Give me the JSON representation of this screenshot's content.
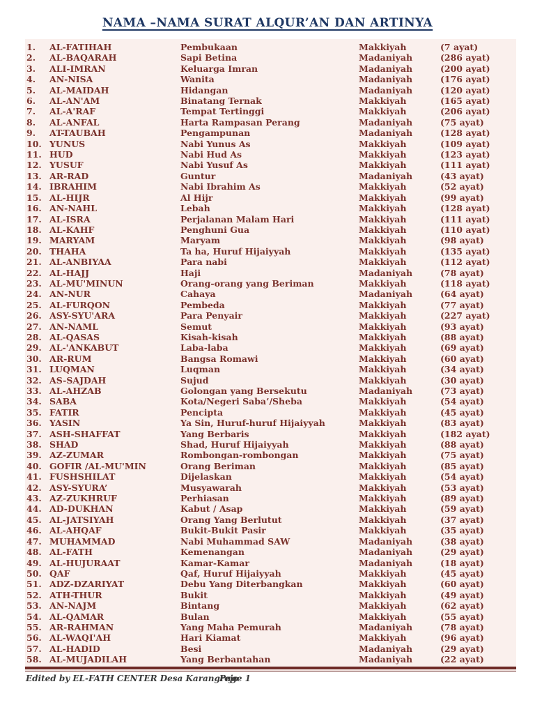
{
  "page": {
    "title": "NAMA –NAMA SURAT ALQUR’AN DAN ARTINYA",
    "footer": {
      "edited_by": "Edited by EL-FATH CENTER Desa Karangrejo",
      "page_label": "Page 1"
    },
    "colors": {
      "title_navy": "#1F3864",
      "body_maroon": "#7A322C",
      "table_background_pink": "#FAF0ED",
      "divider_maroon": "#6E2B27",
      "footer_text": "#3a3a3a"
    }
  },
  "table": {
    "columns": [
      "no",
      "name",
      "meaning",
      "type",
      "ayat"
    ],
    "rows": [
      {
        "no": "1.",
        "name": "AL-FATIHAH",
        "meaning": "Pembukaan",
        "type": "Makkiyah",
        "ayat": "(7 ayat)"
      },
      {
        "no": "2.",
        "name": "AL-BAQARAH",
        "meaning": "Sapi Betina",
        "type": "Madaniyah",
        "ayat": "(286 ayat)"
      },
      {
        "no": "3.",
        "name": "ALI-IMRAN",
        "meaning": "Keluarga Imran",
        "type": "Madaniyah",
        "ayat": "(200 ayat)"
      },
      {
        "no": "4.",
        "name": "AN-NISA",
        "meaning": "Wanita",
        "type": "Madaniyah",
        "ayat": "(176 ayat)"
      },
      {
        "no": "5.",
        "name": "AL-MAIDAH",
        "meaning": "Hidangan",
        "type": "Madaniyah",
        "ayat": "(120 ayat)"
      },
      {
        "no": "6.",
        "name": "AL-AN'AM",
        "meaning": "Binatang Ternak",
        "type": "Makkiyah",
        "ayat": "(165 ayat)"
      },
      {
        "no": "7.",
        "name": "AL-A'RAF",
        "meaning": "Tempat Tertinggi",
        "type": "Makkiyah",
        "ayat": "(206 ayat)"
      },
      {
        "no": "8.",
        "name": "AL-ANFAL",
        "meaning": "Harta Rampasan Perang",
        "type": "Madaniyah",
        "ayat": "(75 ayat)"
      },
      {
        "no": "9.",
        "name": "AT-TAUBAH",
        "meaning": "Pengampunan",
        "type": "Madaniyah",
        "ayat": "(128 ayat)"
      },
      {
        "no": "10.",
        "name": "YUNUS",
        "meaning": "Nabi Yunus As",
        "type": "Makkiyah",
        "ayat": "(109 ayat)"
      },
      {
        "no": "11.",
        "name": "HUD",
        "meaning": "Nabi Hud As",
        "type": "Makkiyah",
        "ayat": "(123 ayat)"
      },
      {
        "no": "12.",
        "name": "YUSUF",
        "meaning": "Nabi Yusuf As",
        "type": "Makkiyah",
        "ayat": "(111 ayat)"
      },
      {
        "no": "13.",
        "name": "AR-RAD",
        "meaning": "Guntur",
        "type": "Madaniyah",
        "ayat": "(43 ayat)"
      },
      {
        "no": "14.",
        "name": "IBRAHIM",
        "meaning": "Nabi Ibrahim As",
        "type": "Makkiyah",
        "ayat": "(52 ayat)"
      },
      {
        "no": "15.",
        "name": "AL-HIJR",
        "meaning": "Al Hijr",
        "type": "Makkiyah",
        "ayat": "(99 ayat)"
      },
      {
        "no": "16.",
        "name": "AN-NAHL",
        "meaning": "Lebah",
        "type": "Makkiyah",
        "ayat": "(128 ayat)"
      },
      {
        "no": "17.",
        "name": "AL-ISRA",
        "meaning": "Perjalanan Malam Hari",
        "type": "Makkiyah",
        "ayat": "(111 ayat)"
      },
      {
        "no": "18.",
        "name": "AL-KAHF",
        "meaning": "Penghuni Gua",
        "type": "Makkiyah",
        "ayat": "(110 ayat)"
      },
      {
        "no": "19.",
        "name": "MARYAM",
        "meaning": "Maryam",
        "type": "Makkiyah",
        "ayat": "(98 ayat)"
      },
      {
        "no": "20.",
        "name": "THAHA",
        "meaning": "Ta ha, Huruf Hijaiyyah",
        "type": "Makkiyah",
        "ayat": "(135 ayat)"
      },
      {
        "no": "21.",
        "name": "AL-ANBIYAA",
        "meaning": "Para nabi",
        "type": "Makkiyah",
        "ayat": "(112 ayat)"
      },
      {
        "no": "22.",
        "name": "AL-HAJJ",
        "meaning": "Haji",
        "type": "Madaniyah",
        "ayat": "(78 ayat)"
      },
      {
        "no": "23.",
        "name": "AL-MU'MINUN",
        "meaning": "Orang-orang yang Beriman",
        "type": "Makkiyah",
        "ayat": "(118 ayat)"
      },
      {
        "no": "24.",
        "name": "AN-NUR",
        "meaning": "Cahaya",
        "type": "Madaniyah",
        "ayat": "(64 ayat)"
      },
      {
        "no": "25.",
        "name": "AL-FURQON",
        "meaning": "Pembeda",
        "type": "Makkiyah",
        "ayat": "(77 ayat)"
      },
      {
        "no": "26.",
        "name": "ASY-SYU'ARA",
        "meaning": "Para Penyair",
        "type": "Makkiyah",
        "ayat": "(227 ayat)"
      },
      {
        "no": "27.",
        "name": "AN-NAML",
        "meaning": "Semut",
        "type": "Makkiyah",
        "ayat": "(93 ayat)"
      },
      {
        "no": "28.",
        "name": "AL-QASAS",
        "meaning": "Kisah-kisah",
        "type": "Makkiyah",
        "ayat": "(88 ayat)"
      },
      {
        "no": "29.",
        "name": "AL-'ANKABUT",
        "meaning": "Laba-laba",
        "type": "Makkiyah",
        "ayat": "(69 ayat)"
      },
      {
        "no": "30.",
        "name": "AR-RUM",
        "meaning": "Bangsa Romawi",
        "type": "Makkiyah",
        "ayat": "(60 ayat)"
      },
      {
        "no": "31.",
        "name": "LUQMAN",
        "meaning": "Luqman",
        "type": "Makkiyah",
        "ayat": "(34 ayat)"
      },
      {
        "no": "32.",
        "name": "AS-SAJDAH",
        "meaning": "Sujud",
        "type": "Makkiyah",
        "ayat": "(30 ayat)"
      },
      {
        "no": "33.",
        "name": "AL-AHZAB",
        "meaning": "Golongan yang Bersekutu",
        "type": "Madaniyah",
        "ayat": "(73 ayat)"
      },
      {
        "no": "34.",
        "name": "SABA",
        "meaning": "Kota/Negeri Saba’/Sheba",
        "type": "Makkiyah",
        "ayat": "(54 ayat)"
      },
      {
        "no": "35.",
        "name": "FATIR",
        "meaning": "Pencipta",
        "type": "Makkiyah",
        "ayat": "(45 ayat)"
      },
      {
        "no": "36.",
        "name": "YASIN",
        "meaning": "Ya Sin, Huruf-huruf Hijaiyyah",
        "type": "Makkiyah",
        "ayat": "(83 ayat)"
      },
      {
        "no": "37.",
        "name": "ASH-SHAFFAT",
        "meaning": "Yang Berbaris",
        "type": "Makkiyah",
        "ayat": "(182 ayat)"
      },
      {
        "no": "38.",
        "name": "SHAD",
        "meaning": "Shad, Huruf Hijaiyyah",
        "type": "Makkiyah",
        "ayat": "(88 ayat)"
      },
      {
        "no": "39.",
        "name": "AZ-ZUMAR",
        "meaning": "Rombongan-rombongan",
        "type": "Makkiyah",
        "ayat": "(75 ayat)"
      },
      {
        "no": "40.",
        "name": "GOFIR /AL-MU'MIN",
        "meaning": "Orang Beriman",
        "type": "Makkiyah",
        "ayat": "(85 ayat)"
      },
      {
        "no": "41.",
        "name": "FUSHSHILAT",
        "meaning": "Dijelaskan",
        "type": "Makkiyah",
        "ayat": "(54 ayat)"
      },
      {
        "no": "42.",
        "name": "ASY-SYURA’",
        "meaning": "Musyawarah",
        "type": "Makkiyah",
        "ayat": "(53 ayat)"
      },
      {
        "no": "43.",
        "name": "AZ-ZUKHRUF",
        "meaning": "Perhiasan",
        "type": "Makkiyah",
        "ayat": "(89 ayat)"
      },
      {
        "no": "44.",
        "name": "AD-DUKHAN",
        "meaning": "Kabut / Asap",
        "type": "Makkiyah",
        "ayat": "(59 ayat)"
      },
      {
        "no": "45.",
        "name": "AL-JATSIYAH",
        "meaning": "Orang Yang Berlutut",
        "type": "Makkiyah",
        "ayat": "(37 ayat)"
      },
      {
        "no": "46.",
        "name": "AL-AHQAF",
        "meaning": "Bukit-Bukit Pasir",
        "type": "Makkiyah",
        "ayat": "(35 ayat)"
      },
      {
        "no": "47.",
        "name": "MUHAMMAD",
        "meaning": "Nabi Muhammad SAW",
        "type": "Madaniyah",
        "ayat": "(38 ayat)"
      },
      {
        "no": "48.",
        "name": "AL-FATH",
        "meaning": "Kemenangan",
        "type": "Madaniyah",
        "ayat": "(29 ayat)"
      },
      {
        "no": "49.",
        "name": "AL-HUJURAAT",
        "meaning": "Kamar-Kamar",
        "type": "Madaniyah",
        "ayat": "(18 ayat)"
      },
      {
        "no": "50.",
        "name": "QAF",
        "meaning": "Qaf, Huruf Hijaiyyah",
        "type": "Makkiyah",
        "ayat": "(45 ayat)"
      },
      {
        "no": "51.",
        "name": "ADZ-DZARIYAT",
        "meaning": "Debu Yang Diterbangkan",
        "type": "Makkiyah",
        "ayat": "(60 ayat)"
      },
      {
        "no": "52.",
        "name": "ATH-THUR",
        "meaning": "Bukit",
        "type": "Makkiyah",
        "ayat": "(49 ayat)"
      },
      {
        "no": "53.",
        "name": "AN-NAJM",
        "meaning": "Bintang",
        "type": "Makkiyah",
        "ayat": "(62 ayat)"
      },
      {
        "no": "54.",
        "name": "AL-QAMAR",
        "meaning": "Bulan",
        "type": "Makkiyah",
        "ayat": "(55 ayat)"
      },
      {
        "no": "55.",
        "name": "AR-RAHMAN",
        "meaning": "Yang Maha Pemurah",
        "type": "Madaniyah",
        "ayat": "(78 ayat)"
      },
      {
        "no": "56.",
        "name": "AL-WAQI'AH",
        "meaning": "Hari Kiamat",
        "type": "Makkiyah",
        "ayat": "(96 ayat)"
      },
      {
        "no": "57.",
        "name": "AL-HADID",
        "meaning": "Besi",
        "type": "Madaniyah",
        "ayat": "(29 ayat)"
      },
      {
        "no": "58.",
        "name": "AL-MUJADILAH",
        "meaning": "Yang Berbantahan",
        "type": "Madaniyah",
        "ayat": "(22 ayat)"
      }
    ]
  }
}
